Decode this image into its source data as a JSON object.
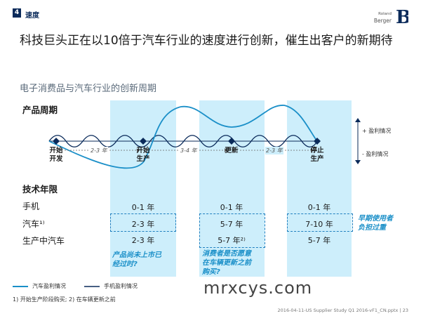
{
  "header": {
    "section_number": "4",
    "section_label": "速度",
    "brand_line1": "Roland",
    "brand_line2": "Berger",
    "brand_mark": "B"
  },
  "headline": "科技巨头正在以10倍于汽车行业的速度进行创新，催生出客户的新期待",
  "subtitle": "电子消费品与汽车行业的创新周期",
  "product_cycle": {
    "title": "产品周期",
    "milestones": [
      "开始\n开发",
      "开始\n生产",
      "更新",
      "停止\n生产"
    ],
    "intervals": [
      "2-3 年",
      "3-4 年",
      "2-3 年"
    ],
    "profit_plus": "+ 盈利情况",
    "profit_minus": "- 盈利情况"
  },
  "tech_life": {
    "title": "技术年限",
    "rows": [
      {
        "label": "手机",
        "values": [
          "0-1 年",
          "0-1 年",
          "0-1 年"
        ]
      },
      {
        "label": "汽车¹⁾",
        "values": [
          "2-3 年",
          "5-7 年",
          "7-10 年"
        ]
      },
      {
        "label": "生产中汽车",
        "values": [
          "2-3 年",
          "5-7 年²⁾",
          "5-7 年"
        ]
      }
    ],
    "note_right": "早期使用者\n负担过重",
    "note_left": "产品尚未上市已\n经过时?",
    "note_mid": "消费者是否愿意\n在车辆更新之前\n购买?"
  },
  "legend": {
    "car_profit": "汽车盈利情况",
    "phone_profit": "手机盈利情况"
  },
  "footnote": "1) 开始生产阶段购买; 2) 在车辆更新之前",
  "footer": "2016-04-11-US Supplier Study Q1 2016-vF1_CN.pptx  |  23",
  "watermark": "mrxcys.com",
  "colors": {
    "navy": "#0a2a5a",
    "band": "#cdeefb",
    "car_line": "#1a8fc8",
    "phone_line": "#0a2a5a",
    "note_blue": "#1a8fc8"
  }
}
